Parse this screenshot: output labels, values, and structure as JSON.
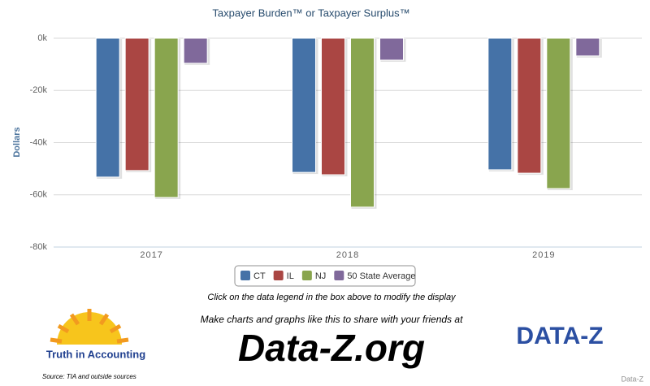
{
  "chart_data": {
    "type": "bar",
    "title": "Taxpayer Burden™ or Taxpayer Surplus™",
    "y_label": "Dollars",
    "categories": [
      "2017",
      "2018",
      "2019"
    ],
    "series": [
      {
        "name": "CT",
        "color": "#4572a7",
        "values": [
          -53200,
          -51400,
          -50400
        ]
      },
      {
        "name": "IL",
        "color": "#aa4643",
        "values": [
          -50700,
          -52300,
          -51700
        ]
      },
      {
        "name": "NJ",
        "color": "#89a54e",
        "values": [
          -61000,
          -64700,
          -57600
        ]
      },
      {
        "name": "50 State Average",
        "color": "#80699b",
        "values": [
          -9600,
          -8400,
          -6800
        ]
      }
    ],
    "ylim": [
      -80000,
      0
    ],
    "yticks": [
      {
        "value": 0,
        "label": "0k"
      },
      {
        "value": -20000,
        "label": "-20k"
      },
      {
        "value": -40000,
        "label": "-40k"
      },
      {
        "value": -60000,
        "label": "-60k"
      },
      {
        "value": -80000,
        "label": "-80k"
      }
    ],
    "grid": true
  },
  "page": {
    "hint": "Click on the data legend in the box above to modify the display",
    "promo": "Make charts and graphs like this to share with your friends at",
    "site": "Data-Z.org",
    "tia_logo": "Truth in Accounting",
    "dataz_logo": "DATA-Z",
    "source": "Source: TIA and outside sources",
    "credit": "Data-Z"
  }
}
